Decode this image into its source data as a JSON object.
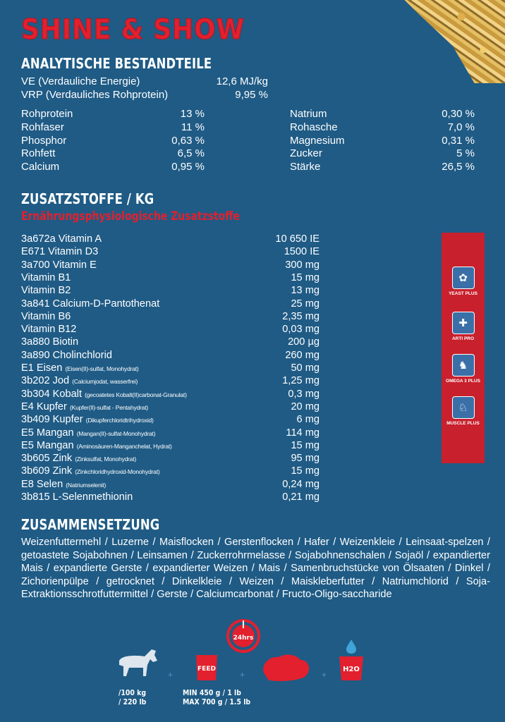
{
  "title": "SHINE & SHOW",
  "analysis": {
    "heading": "ANALYTISCHE BESTANDTEILE",
    "energy": [
      {
        "name": "VE (Verdauliche Energie)",
        "value": "12,6 MJ/kg"
      },
      {
        "name": "VRP (Verdauliches Rohprotein)",
        "value": "9,95 %"
      }
    ],
    "left": [
      {
        "name": "Rohprotein",
        "value": "13 %"
      },
      {
        "name": "Rohfaser",
        "value": "11 %"
      },
      {
        "name": "Phosphor",
        "value": "0,63 %"
      },
      {
        "name": "Rohfett",
        "value": "6,5 %"
      },
      {
        "name": "Calcium",
        "value": "0,95 %"
      }
    ],
    "right": [
      {
        "name": "Natrium",
        "value": "0,30 %"
      },
      {
        "name": "Rohasche",
        "value": "7,0 %"
      },
      {
        "name": "Magnesium",
        "value": "0,31 %"
      },
      {
        "name": "Zucker",
        "value": "5 %"
      },
      {
        "name": "Stärke",
        "value": "26,5 %"
      }
    ]
  },
  "additives": {
    "heading": "ZUSATZSTOFFE / KG",
    "subheading": "Ernährungsphysiologische Zusatzstoffe",
    "items": [
      {
        "name": "3a672a Vitamin A",
        "note": "",
        "value": "10 650 IE"
      },
      {
        "name": "E671 Vitamin D3",
        "note": "",
        "value": "1500 IE"
      },
      {
        "name": "3a700 Vitamin E",
        "note": "",
        "value": "300 mg"
      },
      {
        "name": "Vitamin B1",
        "note": "",
        "value": "15 mg"
      },
      {
        "name": "Vitamin B2",
        "note": "",
        "value": "13 mg"
      },
      {
        "name": "3a841 Calcium-D-Pantothenat",
        "note": "",
        "value": "25 mg"
      },
      {
        "name": "Vitamin B6",
        "note": "",
        "value": "2,35 mg"
      },
      {
        "name": "Vitamin B12",
        "note": "",
        "value": "0,03 mg"
      },
      {
        "name": "3a880 Biotin",
        "note": "",
        "value": "200 µg"
      },
      {
        "name": "3a890 Cholinchlorid",
        "note": "",
        "value": "260 mg"
      },
      {
        "name": "E1 Eisen",
        "note": "(Eisen(II)-sulfat, Monohydrat)",
        "value": "50 mg"
      },
      {
        "name": "3b202 Jod",
        "note": "(Calciumjodat, wasserfrei)",
        "value": "1,25 mg"
      },
      {
        "name": "3b304 Kobalt",
        "note": "(gecoatetes Kobalt(II)carbonat-Granulat)",
        "value": "0,3 mg"
      },
      {
        "name": "E4 Kupfer",
        "note": "(Kupfer(II)-sulfat - Pentahydrat)",
        "value": "20 mg"
      },
      {
        "name": "3b409 Kupfer",
        "note": "(Dikupferchloridtrihydroxid)",
        "value": "6 mg"
      },
      {
        "name": "E5 Mangan",
        "note": "(Mangan(II)-sulfat-Monohydrat)",
        "value": "114 mg"
      },
      {
        "name": "E5 Mangan",
        "note": "(Aminosäuren-Manganchelat, Hydrat)",
        "value": "15 mg"
      },
      {
        "name": "3b605 Zink",
        "note": "(Zinksulfat, Monohydrat)",
        "value": "95 mg"
      },
      {
        "name": "3b609 Zink",
        "note": "(Zinkchloridhydroxid-Monohydrat)",
        "value": "15 mg"
      },
      {
        "name": "E8 Selen",
        "note": "(Natriumselenit)",
        "value": "0,24 mg"
      },
      {
        "name": "3b815 L-Selenmethionin",
        "note": "",
        "value": "0,21 mg"
      }
    ]
  },
  "badges": [
    {
      "label": "YEAST PLUS",
      "icon": "yeast-icon"
    },
    {
      "label": "ARTI PRO",
      "icon": "joint-icon"
    },
    {
      "label": "OMEGA 3 PLUS",
      "icon": "horse-head-icon"
    },
    {
      "label": "MUSCLE PLUS",
      "icon": "horse-rider-icon"
    }
  ],
  "composition": {
    "heading": "ZUSAMMENSETZUNG",
    "text": "Weizenfuttermehl / Luzerne / Maisflocken / Gerstenflocken / Hafer / Weizenkleie / Leinsaat-spelzen / getoastete Sojabohnen / Leinsamen / Zuckerrohrmelasse / Sojabohnenschalen / Sojaöl / expandierter Mais / expandierte Gerste / expandierter Weizen / Mais / Samenbruchstücke von Ölsaaten / Dinkel / Zichorienpülpe / getrocknet / Dinkelkleie / Weizen / Maiskleberfutter / Natriumchlorid / Soja-Extraktionsschrotfuttermittel / Gerste / Calciumcarbonat / Fructo-Oligo-saccharide"
  },
  "feeding": {
    "clock_label": "24hrs",
    "feed_label": "FEED",
    "water_label": "H2O",
    "weight_lines": [
      "/100 kg",
      "/ 220 lb"
    ],
    "amount_lines": [
      "MIN 450 g / 1 lb",
      "MAX 700 g / 1.5 lb"
    ],
    "colors": {
      "accent": "#e2202e",
      "background": "#1f5b85"
    }
  }
}
